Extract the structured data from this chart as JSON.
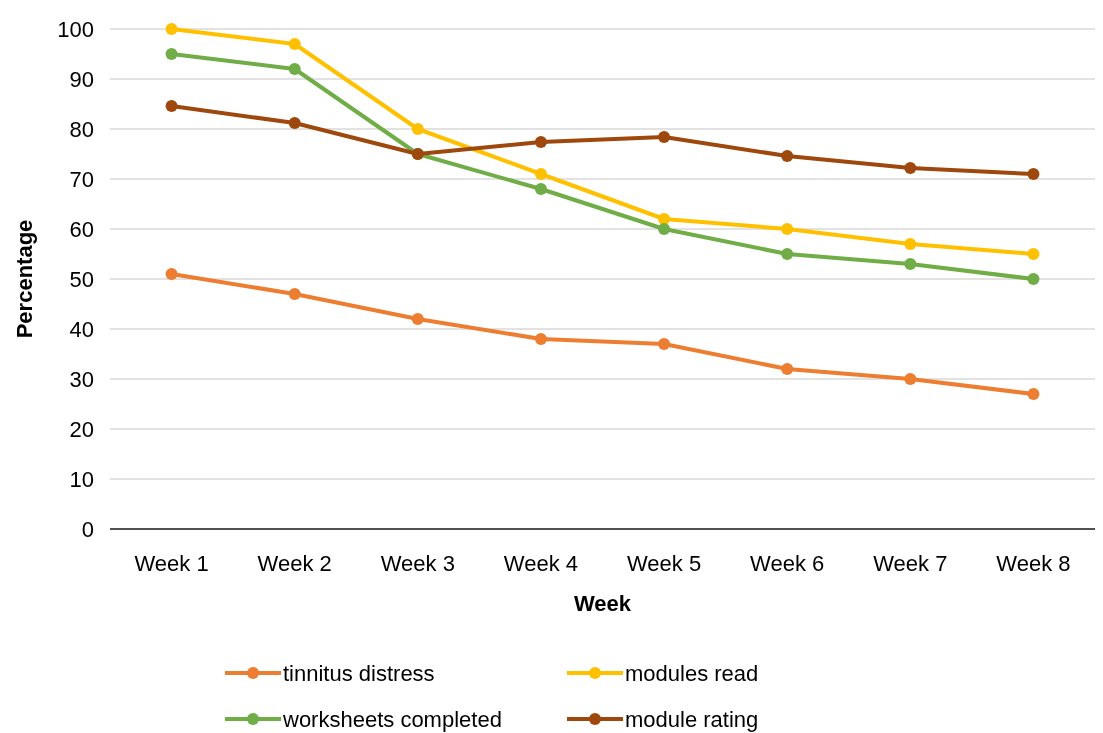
{
  "chart_data": {
    "type": "line",
    "xlabel": "Week",
    "ylabel": "Percentage",
    "categories": [
      "Week 1",
      "Week 2",
      "Week 3",
      "Week 4",
      "Week 5",
      "Week 6",
      "Week 7",
      "Week 8"
    ],
    "series": [
      {
        "name": "tinnitus distress",
        "color": "#ed7d31",
        "values": [
          51,
          47,
          42,
          38,
          37,
          32,
          30,
          27
        ]
      },
      {
        "name": "modules read",
        "color": "#ffc000",
        "values": [
          100,
          97,
          80,
          71,
          62,
          60,
          57,
          55
        ]
      },
      {
        "name": "worksheets completed",
        "color": "#70ad47",
        "values": [
          95,
          92,
          75,
          68,
          60,
          55,
          53,
          50
        ]
      },
      {
        "name": "module rating",
        "color": "#9e480e",
        "values": [
          84.6,
          81.2,
          75,
          77.4,
          78.4,
          74.6,
          72.2,
          71
        ]
      }
    ],
    "ylim": [
      0,
      100
    ],
    "yticks": [
      0,
      10,
      20,
      30,
      40,
      50,
      60,
      70,
      80,
      90,
      100
    ],
    "grid": "y",
    "legend": "bottom",
    "marker": "circle",
    "line_style": "solid"
  }
}
